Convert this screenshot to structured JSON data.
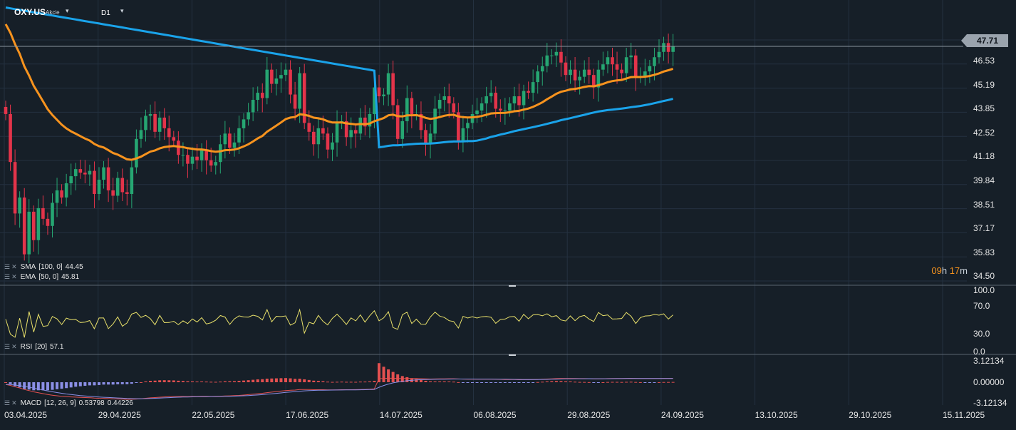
{
  "header": {
    "symbol": "OXY.US",
    "instrument_type": "Akcie",
    "timeframe": "D1",
    "symbol_caret": "▾",
    "timeframe_caret": "▾"
  },
  "indicators": {
    "sma": {
      "name": "SMA",
      "params": "[100,  0]",
      "value": "44.45",
      "color": "#1aa3ea"
    },
    "ema": {
      "name": "EMA",
      "params": "[50,  0]",
      "value": "45.81",
      "color": "#f7931e"
    },
    "rsi": {
      "name": "RSI",
      "params": "[20]",
      "value": "57.1",
      "color": "#e8e06a"
    },
    "macd": {
      "name": "MACD",
      "params": "[12,  26,  9]",
      "value1": "0.53798",
      "value2": "0.44226"
    }
  },
  "countdown": {
    "hours": "09",
    "h_unit": "h",
    "minutes": "17",
    "m_unit": "m"
  },
  "colors": {
    "background": "#161f28",
    "grid": "#243140",
    "up": "#26a672",
    "down": "#e3344a",
    "ema": "#f7931e",
    "sma": "#1aa3ea",
    "rsi": "#e8e06a",
    "macd": "#e35050",
    "signal": "#8b8fe6",
    "price_line": "#8a949e",
    "price_tag": "#9aa3ad",
    "divider": "#5a6570"
  },
  "chart_data": [
    {
      "type": "candlestick",
      "title": "OXY.US",
      "timeframe": "D1",
      "last_price": "47.71",
      "ylim": [
        34.5,
        49.6
      ],
      "y_ticks": [
        "47.71",
        "46.53",
        "45.19",
        "43.85",
        "42.52",
        "41.18",
        "39.84",
        "38.51",
        "37.17",
        "35.83",
        "34.50"
      ],
      "x_ticks": [
        "03.04.2025",
        "29.04.2025",
        "22.05.2025",
        "17.06.2025",
        "14.07.2025",
        "06.08.2025",
        "29.08.2025",
        "24.09.2025",
        "13.10.2025",
        "29.10.2025",
        "15.11.2025"
      ],
      "closes": [
        43.9,
        41.2,
        38.3,
        39.2,
        36.0,
        38.4,
        36.8,
        38.6,
        38.0,
        37.6,
        38.9,
        39.6,
        39.2,
        40.0,
        40.4,
        40.8,
        40.6,
        40.5,
        40.7,
        39.4,
        40.2,
        40.9,
        39.6,
        39.3,
        40.3,
        39.5,
        39.4,
        40.9,
        42.5,
        43.0,
        43.8,
        43.9,
        42.9,
        43.7,
        43.1,
        42.6,
        42.4,
        41.6,
        41.6,
        41.1,
        41.5,
        41.3,
        41.9,
        41.3,
        41.0,
        41.2,
        42.2,
        42.8,
        42.0,
        42.3,
        43.1,
        43.6,
        44.0,
        44.7,
        45.1,
        44.8,
        46.4,
        45.6,
        45.9,
        46.1,
        46.4,
        45.0,
        44.2,
        46.2,
        43.4,
        42.9,
        42.2,
        43.1,
        42.8,
        41.9,
        42.3,
        43.4,
        43.5,
        42.6,
        43.0,
        42.8,
        43.7,
        43.2,
        43.9,
        45.4,
        44.9,
        45.0,
        46.2,
        44.4,
        42.5,
        43.5,
        44.8,
        43.9,
        43.9,
        43.0,
        42.2,
        42.8,
        44.2,
        44.7,
        44.9,
        44.5,
        44.0,
        42.4,
        43.1,
        43.4,
        43.9,
        44.1,
        44.5,
        44.9,
        45.1,
        44.2,
        44.1,
        44.1,
        44.5,
        44.9,
        44.4,
        45.2,
        45.1,
        45.7,
        46.3,
        46.6,
        47.2,
        47.2,
        47.4,
        46.8,
        46.1,
        46.4,
        45.8,
        46.0,
        46.4,
        46.1,
        45.4,
        46.4,
        46.7,
        47.1,
        46.7,
        46.4,
        46.2,
        47.1,
        47.2,
        46.0,
        46.0,
        46.3,
        46.6,
        47.1,
        47.4,
        47.9,
        47.4,
        47.7
      ],
      "rsi": {
        "ticks": [
          "100.0",
          "70.0",
          "30.0",
          "0.0"
        ],
        "ylim": [
          0,
          100
        ]
      },
      "macd": {
        "ticks": [
          "3.12134",
          "0.00000",
          "-3.12134"
        ],
        "ylim": [
          -3.12134,
          3.12134
        ]
      }
    }
  ]
}
